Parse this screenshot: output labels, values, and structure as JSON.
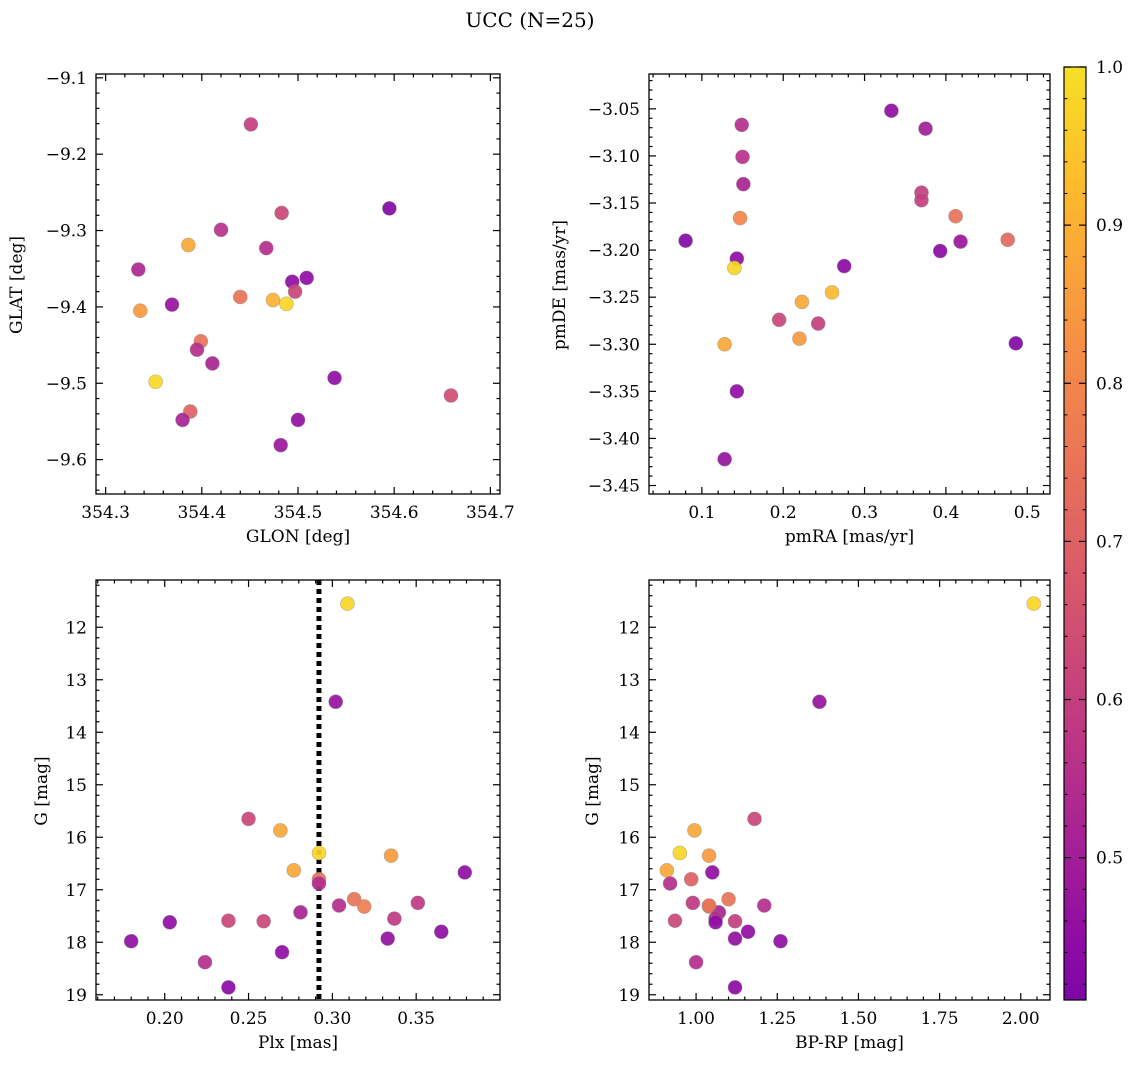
{
  "figure": {
    "title": "UCC (N=25)"
  },
  "colorbar": {
    "min": 0.41,
    "max": 1.0,
    "ticks": [
      0.5,
      0.6,
      0.7,
      0.8,
      0.9,
      1.0
    ],
    "tick_labels": [
      "0.5",
      "0.6",
      "0.7",
      "0.8",
      "0.9",
      "1.0"
    ],
    "colormap": "plasma",
    "colormap_range": [
      0.25,
      0.94
    ]
  },
  "chart_data": [
    {
      "type": "scatter",
      "id": "glon-glat",
      "xlabel": "GLON [deg]",
      "ylabel": "GLAT [deg]",
      "xlim": [
        354.29,
        354.71
      ],
      "ylim": [
        -9.645,
        -9.095
      ],
      "y_inverted": false,
      "xticks": [
        354.3,
        354.4,
        354.5,
        354.6,
        354.7
      ],
      "xtick_labels": [
        "354.3",
        "354.4",
        "354.5",
        "354.6",
        "354.7"
      ],
      "yticks": [
        -9.1,
        -9.2,
        -9.3,
        -9.4,
        -9.5,
        -9.6
      ],
      "ytick_labels": [
        "−9.1",
        "−9.2",
        "−9.3",
        "−9.4",
        "−9.5",
        "−9.6"
      ],
      "x": [
        354.451,
        354.595,
        354.483,
        354.42,
        354.386,
        354.467,
        354.334,
        354.369,
        354.494,
        354.509,
        354.44,
        354.474,
        354.488,
        354.336,
        354.497,
        354.399,
        354.395,
        354.411,
        354.352,
        354.538,
        354.659,
        354.388,
        354.38,
        354.5,
        354.482
      ],
      "y": [
        -9.161,
        -9.271,
        -9.277,
        -9.299,
        -9.319,
        -9.323,
        -9.351,
        -9.397,
        -9.367,
        -9.362,
        -9.387,
        -9.391,
        -9.396,
        -9.405,
        -9.38,
        -9.445,
        -9.456,
        -9.474,
        -9.498,
        -9.493,
        -9.516,
        -9.537,
        -9.548,
        -9.548,
        -9.581
      ],
      "color_values": [
        0.6,
        0.42,
        0.62,
        0.56,
        0.88,
        0.55,
        0.53,
        0.47,
        0.45,
        0.45,
        0.75,
        0.9,
        0.98,
        0.85,
        0.62,
        0.75,
        0.55,
        0.52,
        0.99,
        0.45,
        0.64,
        0.7,
        0.52,
        0.46,
        0.48
      ]
    },
    {
      "type": "scatter",
      "id": "pmra-pmde",
      "xlabel": "pmRA [mas/yr]",
      "ylabel": "pmDE [mas/yr]",
      "xlim": [
        0.035,
        0.528
      ],
      "ylim": [
        -3.459,
        -3.013
      ],
      "y_inverted": false,
      "xticks": [
        0.1,
        0.2,
        0.3,
        0.4,
        0.5
      ],
      "xtick_labels": [
        "0.1",
        "0.2",
        "0.3",
        "0.4",
        "0.5"
      ],
      "yticks": [
        -3.05,
        -3.1,
        -3.15,
        -3.2,
        -3.25,
        -3.3,
        -3.35,
        -3.4,
        -3.45
      ],
      "ytick_labels": [
        "−3.05",
        "−3.10",
        "−3.15",
        "−3.20",
        "−3.25",
        "−3.30",
        "−3.35",
        "−3.40",
        "−3.45"
      ],
      "x": [
        0.333,
        0.149,
        0.375,
        0.15,
        0.151,
        0.37,
        0.37,
        0.412,
        0.147,
        0.08,
        0.476,
        0.418,
        0.393,
        0.143,
        0.275,
        0.14,
        0.26,
        0.223,
        0.195,
        0.243,
        0.22,
        0.128,
        0.143,
        0.128,
        0.486
      ],
      "y": [
        -3.052,
        -3.067,
        -3.071,
        -3.101,
        -3.13,
        -3.139,
        -3.147,
        -3.164,
        -3.166,
        -3.19,
        -3.189,
        -3.191,
        -3.201,
        -3.209,
        -3.217,
        -3.219,
        -3.245,
        -3.255,
        -3.274,
        -3.278,
        -3.294,
        -3.3,
        -3.35,
        -3.422,
        -3.299
      ],
      "color_values": [
        0.45,
        0.55,
        0.5,
        0.56,
        0.52,
        0.6,
        0.6,
        0.75,
        0.8,
        0.42,
        0.72,
        0.48,
        0.44,
        0.45,
        0.44,
        0.98,
        0.92,
        0.88,
        0.62,
        0.6,
        0.85,
        0.88,
        0.45,
        0.47,
        0.42
      ]
    },
    {
      "type": "scatter",
      "id": "plx-g",
      "xlabel": "Plx [mas]",
      "ylabel": "G [mag]",
      "xlim": [
        0.159,
        0.4
      ],
      "ylim": [
        11.1,
        19.1
      ],
      "y_inverted": true,
      "xticks": [
        0.2,
        0.25,
        0.3,
        0.35
      ],
      "xtick_labels": [
        "0.20",
        "0.25",
        "0.30",
        "0.35"
      ],
      "yticks": [
        12,
        13,
        14,
        15,
        16,
        17,
        18,
        19
      ],
      "ytick_labels": [
        "12",
        "13",
        "14",
        "15",
        "16",
        "17",
        "18",
        "19"
      ],
      "vline": {
        "x": 0.292,
        "style": "dotted",
        "color": "#000000"
      },
      "x": [
        0.309,
        0.302,
        0.25,
        0.269,
        0.292,
        0.335,
        0.379,
        0.277,
        0.292,
        0.292,
        0.313,
        0.319,
        0.304,
        0.351,
        0.281,
        0.337,
        0.203,
        0.238,
        0.259,
        0.18,
        0.365,
        0.333,
        0.27,
        0.224,
        0.238
      ],
      "y": [
        11.55,
        13.42,
        15.65,
        15.87,
        16.3,
        16.35,
        16.67,
        16.63,
        16.8,
        16.88,
        17.18,
        17.32,
        17.3,
        17.25,
        17.43,
        17.55,
        17.62,
        17.59,
        17.6,
        17.98,
        17.8,
        17.93,
        18.19,
        18.38,
        18.86
      ],
      "color_values": [
        0.98,
        0.47,
        0.62,
        0.88,
        0.98,
        0.85,
        0.45,
        0.88,
        0.75,
        0.55,
        0.75,
        0.78,
        0.55,
        0.58,
        0.52,
        0.58,
        0.45,
        0.62,
        0.62,
        0.45,
        0.45,
        0.46,
        0.45,
        0.55,
        0.44
      ]
    },
    {
      "type": "scatter",
      "id": "bprp-g",
      "xlabel": "BP-RP [mag]",
      "ylabel": "G [mag]",
      "xlim": [
        0.855,
        2.09
      ],
      "ylim": [
        11.1,
        19.1
      ],
      "y_inverted": true,
      "xticks": [
        1.0,
        1.25,
        1.5,
        1.75,
        2.0
      ],
      "xtick_labels": [
        "1.00",
        "1.25",
        "1.50",
        "1.75",
        "2.00"
      ],
      "yticks": [
        12,
        13,
        14,
        15,
        16,
        17,
        18,
        19
      ],
      "ytick_labels": [
        "12",
        "13",
        "14",
        "15",
        "16",
        "17",
        "18",
        "19"
      ],
      "x": [
        2.04,
        1.38,
        1.18,
        0.995,
        0.95,
        1.04,
        1.05,
        0.91,
        0.985,
        0.92,
        1.1,
        1.04,
        1.21,
        0.99,
        1.07,
        1.06,
        1.06,
        0.935,
        1.12,
        1.26,
        1.16,
        1.12,
        1.0,
        1.12,
        1.04
      ],
      "y": [
        11.55,
        13.42,
        15.65,
        15.87,
        16.3,
        16.35,
        16.67,
        16.63,
        16.8,
        16.88,
        17.18,
        17.32,
        17.3,
        17.25,
        17.43,
        17.55,
        17.62,
        17.59,
        17.6,
        17.98,
        17.8,
        17.93,
        18.38,
        18.86,
        17.3
      ],
      "color_values": [
        0.98,
        0.47,
        0.62,
        0.88,
        0.98,
        0.85,
        0.45,
        0.88,
        0.7,
        0.55,
        0.75,
        0.78,
        0.55,
        0.58,
        0.52,
        0.55,
        0.45,
        0.62,
        0.6,
        0.45,
        0.45,
        0.46,
        0.55,
        0.44,
        0.75
      ]
    }
  ]
}
